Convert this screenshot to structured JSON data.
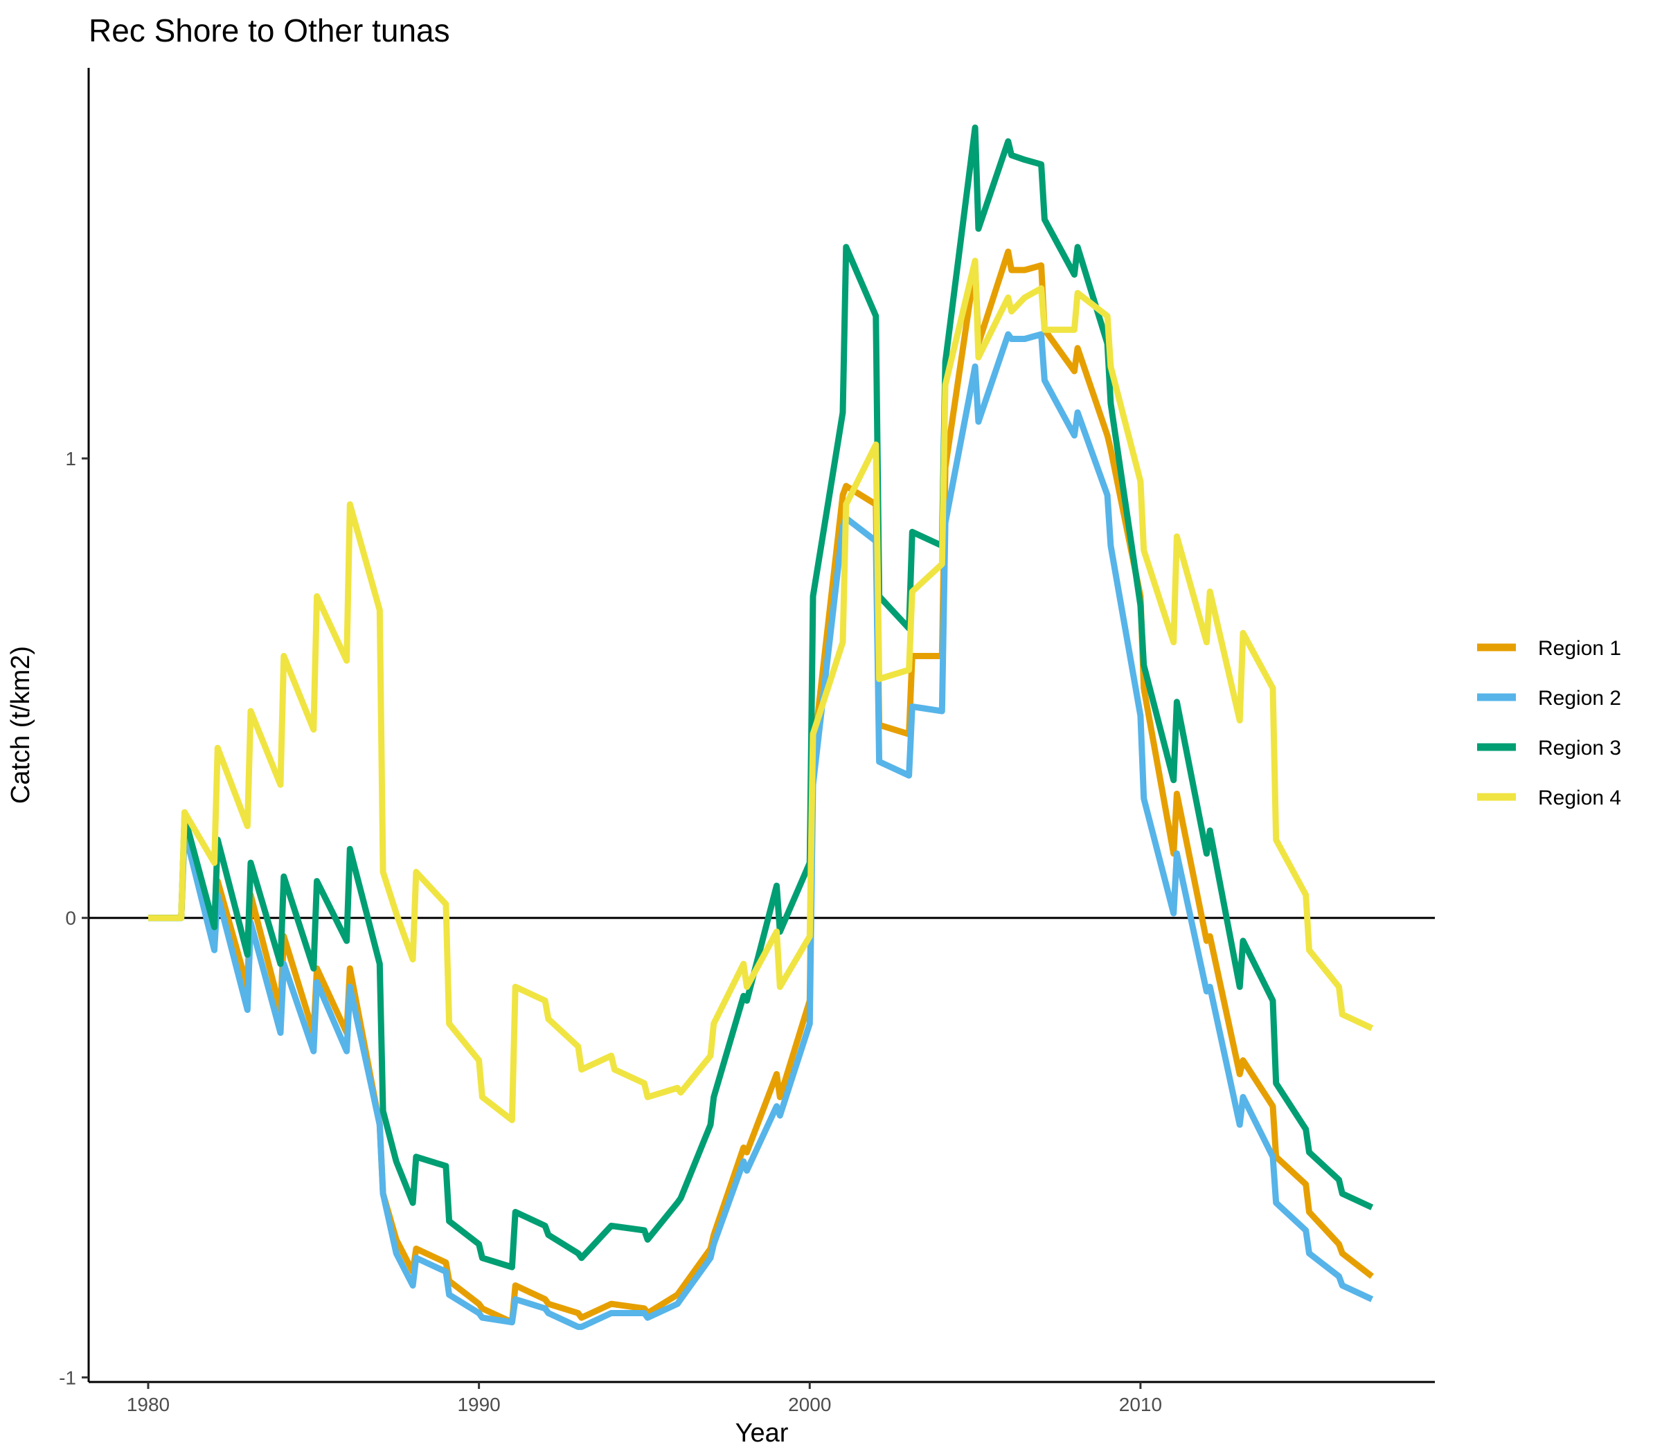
{
  "chart_data": {
    "type": "line",
    "title": "Rec Shore to Other tunas",
    "xlabel": "Year",
    "ylabel": "Catch (t/km2)",
    "xlim": [
      1978.2,
      2018.9
    ],
    "ylim": [
      -1.01,
      1.85
    ],
    "x_ticks": [
      "1980",
      "1990",
      "2000",
      "2010"
    ],
    "x_tick_values": [
      1980,
      1990,
      2000,
      2010
    ],
    "y_ticks": [
      "-1",
      "0",
      "1"
    ],
    "y_tick_values": [
      -1,
      0,
      1
    ],
    "reference_line": 0,
    "grid": false,
    "legend_position": "right",
    "series": [
      {
        "name": "Region 1",
        "color": "#E69F00",
        "points": [
          [
            1980,
            0
          ],
          [
            1980.5,
            0
          ],
          [
            1981,
            0
          ],
          [
            1981.1,
            0.2
          ],
          [
            1982,
            -0.03
          ],
          [
            1982.1,
            0.08
          ],
          [
            1983,
            -0.15
          ],
          [
            1983.1,
            0.05
          ],
          [
            1984,
            -0.2
          ],
          [
            1984.1,
            -0.04
          ],
          [
            1985,
            -0.25
          ],
          [
            1985.1,
            -0.11
          ],
          [
            1986,
            -0.25
          ],
          [
            1986.1,
            -0.11
          ],
          [
            1987,
            -0.45
          ],
          [
            1987.1,
            -0.6
          ],
          [
            1987.5,
            -0.7
          ],
          [
            1988,
            -0.77
          ],
          [
            1988.1,
            -0.72
          ],
          [
            1989,
            -0.75
          ],
          [
            1989.1,
            -0.79
          ],
          [
            1990,
            -0.84
          ],
          [
            1990.1,
            -0.85
          ],
          [
            1991,
            -0.88
          ],
          [
            1991.1,
            -0.8
          ],
          [
            1992,
            -0.83
          ],
          [
            1992.1,
            -0.84
          ],
          [
            1993,
            -0.86
          ],
          [
            1993.1,
            -0.87
          ],
          [
            1994,
            -0.84
          ],
          [
            1995,
            -0.85
          ],
          [
            1995.1,
            -0.86
          ],
          [
            1996,
            -0.82
          ],
          [
            1996.1,
            -0.81
          ],
          [
            1997,
            -0.72
          ],
          [
            1997.1,
            -0.69
          ],
          [
            1998,
            -0.5
          ],
          [
            1998.1,
            -0.51
          ],
          [
            1999,
            -0.34
          ],
          [
            1999.1,
            -0.39
          ],
          [
            2000,
            -0.18
          ],
          [
            2000.1,
            0.35
          ],
          [
            2001,
            0.92
          ],
          [
            2001.1,
            0.94
          ],
          [
            2002,
            0.9
          ],
          [
            2002.1,
            0.42
          ],
          [
            2003,
            0.4
          ],
          [
            2003.1,
            0.57
          ],
          [
            2004,
            0.57
          ],
          [
            2004.1,
            0.98
          ],
          [
            2005,
            1.42
          ],
          [
            2005.1,
            1.25
          ],
          [
            2006,
            1.45
          ],
          [
            2006.1,
            1.41
          ],
          [
            2006.5,
            1.41
          ],
          [
            2007,
            1.42
          ],
          [
            2007.1,
            1.28
          ],
          [
            2008,
            1.19
          ],
          [
            2008.1,
            1.24
          ],
          [
            2009,
            1.05
          ],
          [
            2009.1,
            1.02
          ],
          [
            2010,
            0.7
          ],
          [
            2010.1,
            0.5
          ],
          [
            2011,
            0.14
          ],
          [
            2011.1,
            0.27
          ],
          [
            2012,
            -0.05
          ],
          [
            2012.1,
            -0.04
          ],
          [
            2013,
            -0.34
          ],
          [
            2013.1,
            -0.31
          ],
          [
            2014,
            -0.41
          ],
          [
            2014.1,
            -0.52
          ],
          [
            2015,
            -0.58
          ],
          [
            2015.1,
            -0.64
          ],
          [
            2016,
            -0.71
          ],
          [
            2016.1,
            -0.73
          ],
          [
            2017,
            -0.78
          ]
        ]
      },
      {
        "name": "Region 2",
        "color": "#56B4E9",
        "points": [
          [
            1980,
            0
          ],
          [
            1980.5,
            0
          ],
          [
            1981,
            0
          ],
          [
            1981.1,
            0.19
          ],
          [
            1982,
            -0.07
          ],
          [
            1982.1,
            0.05
          ],
          [
            1983,
            -0.2
          ],
          [
            1983.1,
            -0.01
          ],
          [
            1984,
            -0.25
          ],
          [
            1984.1,
            -0.1
          ],
          [
            1985,
            -0.29
          ],
          [
            1985.1,
            -0.14
          ],
          [
            1986,
            -0.29
          ],
          [
            1986.1,
            -0.15
          ],
          [
            1987,
            -0.45
          ],
          [
            1987.1,
            -0.6
          ],
          [
            1987.5,
            -0.73
          ],
          [
            1988,
            -0.8
          ],
          [
            1988.1,
            -0.74
          ],
          [
            1989,
            -0.77
          ],
          [
            1989.1,
            -0.82
          ],
          [
            1990,
            -0.86
          ],
          [
            1990.1,
            -0.87
          ],
          [
            1991,
            -0.88
          ],
          [
            1991.1,
            -0.83
          ],
          [
            1992,
            -0.85
          ],
          [
            1992.1,
            -0.86
          ],
          [
            1993,
            -0.89
          ],
          [
            1993.1,
            -0.89
          ],
          [
            1994,
            -0.86
          ],
          [
            1995,
            -0.86
          ],
          [
            1995.1,
            -0.87
          ],
          [
            1996,
            -0.84
          ],
          [
            1996.1,
            -0.83
          ],
          [
            1997,
            -0.74
          ],
          [
            1997.1,
            -0.71
          ],
          [
            1998,
            -0.53
          ],
          [
            1998.1,
            -0.55
          ],
          [
            1999,
            -0.41
          ],
          [
            1999.1,
            -0.43
          ],
          [
            2000,
            -0.23
          ],
          [
            2000.1,
            0.29
          ],
          [
            2001,
            0.85
          ],
          [
            2001.1,
            0.87
          ],
          [
            2002,
            0.82
          ],
          [
            2002.1,
            0.34
          ],
          [
            2003,
            0.31
          ],
          [
            2003.1,
            0.46
          ],
          [
            2004,
            0.45
          ],
          [
            2004.1,
            0.86
          ],
          [
            2005,
            1.2
          ],
          [
            2005.1,
            1.08
          ],
          [
            2006,
            1.27
          ],
          [
            2006.1,
            1.26
          ],
          [
            2006.5,
            1.26
          ],
          [
            2007,
            1.27
          ],
          [
            2007.1,
            1.17
          ],
          [
            2008,
            1.05
          ],
          [
            2008.1,
            1.1
          ],
          [
            2009,
            0.92
          ],
          [
            2009.1,
            0.81
          ],
          [
            2010,
            0.44
          ],
          [
            2010.1,
            0.26
          ],
          [
            2011,
            0.01
          ],
          [
            2011.1,
            0.14
          ],
          [
            2012,
            -0.16
          ],
          [
            2012.1,
            -0.15
          ],
          [
            2013,
            -0.45
          ],
          [
            2013.1,
            -0.39
          ],
          [
            2014,
            -0.52
          ],
          [
            2014.1,
            -0.62
          ],
          [
            2015,
            -0.68
          ],
          [
            2015.1,
            -0.73
          ],
          [
            2016,
            -0.78
          ],
          [
            2016.1,
            -0.8
          ],
          [
            2017,
            -0.83
          ]
        ]
      },
      {
        "name": "Region 3",
        "color": "#009E73",
        "points": [
          [
            1980,
            0
          ],
          [
            1980.5,
            0
          ],
          [
            1981,
            0
          ],
          [
            1981.1,
            0.22
          ],
          [
            1982,
            -0.02
          ],
          [
            1982.1,
            0.17
          ],
          [
            1983,
            -0.08
          ],
          [
            1983.1,
            0.12
          ],
          [
            1984,
            -0.1
          ],
          [
            1984.1,
            0.09
          ],
          [
            1985,
            -0.11
          ],
          [
            1985.1,
            0.08
          ],
          [
            1986,
            -0.05
          ],
          [
            1986.1,
            0.15
          ],
          [
            1987,
            -0.1
          ],
          [
            1987.1,
            -0.42
          ],
          [
            1987.5,
            -0.53
          ],
          [
            1988,
            -0.62
          ],
          [
            1988.1,
            -0.52
          ],
          [
            1989,
            -0.54
          ],
          [
            1989.1,
            -0.66
          ],
          [
            1990,
            -0.71
          ],
          [
            1990.1,
            -0.74
          ],
          [
            1991,
            -0.76
          ],
          [
            1991.1,
            -0.64
          ],
          [
            1992,
            -0.67
          ],
          [
            1992.1,
            -0.69
          ],
          [
            1993,
            -0.73
          ],
          [
            1993.1,
            -0.74
          ],
          [
            1994,
            -0.67
          ],
          [
            1995,
            -0.68
          ],
          [
            1995.1,
            -0.7
          ],
          [
            1996,
            -0.62
          ],
          [
            1996.1,
            -0.61
          ],
          [
            1997,
            -0.45
          ],
          [
            1997.1,
            -0.39
          ],
          [
            1998,
            -0.17
          ],
          [
            1998.1,
            -0.18
          ],
          [
            1999,
            0.07
          ],
          [
            1999.1,
            -0.03
          ],
          [
            2000,
            0.12
          ],
          [
            2000.1,
            0.7
          ],
          [
            2001,
            1.1
          ],
          [
            2001.1,
            1.46
          ],
          [
            2002,
            1.31
          ],
          [
            2002.1,
            0.7
          ],
          [
            2003,
            0.63
          ],
          [
            2003.1,
            0.84
          ],
          [
            2004,
            0.81
          ],
          [
            2004.1,
            1.21
          ],
          [
            2005,
            1.72
          ],
          [
            2005.1,
            1.5
          ],
          [
            2006,
            1.69
          ],
          [
            2006.1,
            1.66
          ],
          [
            2006.5,
            1.65
          ],
          [
            2007,
            1.64
          ],
          [
            2007.1,
            1.52
          ],
          [
            2008,
            1.4
          ],
          [
            2008.1,
            1.46
          ],
          [
            2009,
            1.25
          ],
          [
            2009.1,
            1.12
          ],
          [
            2010,
            0.68
          ],
          [
            2010.1,
            0.55
          ],
          [
            2011,
            0.3
          ],
          [
            2011.1,
            0.47
          ],
          [
            2012,
            0.14
          ],
          [
            2012.1,
            0.19
          ],
          [
            2013,
            -0.15
          ],
          [
            2013.1,
            -0.05
          ],
          [
            2014,
            -0.18
          ],
          [
            2014.1,
            -0.36
          ],
          [
            2015,
            -0.46
          ],
          [
            2015.1,
            -0.51
          ],
          [
            2016,
            -0.57
          ],
          [
            2016.1,
            -0.6
          ],
          [
            2017,
            -0.63
          ]
        ]
      },
      {
        "name": "Region 4",
        "color": "#F0E442",
        "points": [
          [
            1980,
            0
          ],
          [
            1980.5,
            0
          ],
          [
            1981,
            0
          ],
          [
            1981.1,
            0.23
          ],
          [
            1982,
            0.12
          ],
          [
            1982.1,
            0.37
          ],
          [
            1983,
            0.2
          ],
          [
            1983.1,
            0.45
          ],
          [
            1984,
            0.29
          ],
          [
            1984.1,
            0.57
          ],
          [
            1985,
            0.41
          ],
          [
            1985.1,
            0.7
          ],
          [
            1986,
            0.56
          ],
          [
            1986.1,
            0.9
          ],
          [
            1987,
            0.67
          ],
          [
            1987.1,
            0.1
          ],
          [
            1987.5,
            0.01
          ],
          [
            1988,
            -0.09
          ],
          [
            1988.1,
            0.1
          ],
          [
            1989,
            0.03
          ],
          [
            1989.1,
            -0.23
          ],
          [
            1990,
            -0.31
          ],
          [
            1990.1,
            -0.39
          ],
          [
            1991,
            -0.44
          ],
          [
            1991.1,
            -0.15
          ],
          [
            1992,
            -0.18
          ],
          [
            1992.1,
            -0.22
          ],
          [
            1993,
            -0.28
          ],
          [
            1993.1,
            -0.33
          ],
          [
            1994,
            -0.3
          ],
          [
            1994.1,
            -0.33
          ],
          [
            1995,
            -0.36
          ],
          [
            1995.1,
            -0.39
          ],
          [
            1996,
            -0.37
          ],
          [
            1996.1,
            -0.38
          ],
          [
            1997,
            -0.3
          ],
          [
            1997.1,
            -0.23
          ],
          [
            1998,
            -0.1
          ],
          [
            1998.1,
            -0.15
          ],
          [
            1999,
            -0.03
          ],
          [
            1999.1,
            -0.15
          ],
          [
            2000,
            -0.04
          ],
          [
            2000.1,
            0.4
          ],
          [
            2001,
            0.6
          ],
          [
            2001.1,
            0.9
          ],
          [
            2002,
            1.03
          ],
          [
            2002.1,
            0.52
          ],
          [
            2003,
            0.54
          ],
          [
            2003.1,
            0.71
          ],
          [
            2004,
            0.77
          ],
          [
            2004.1,
            1.16
          ],
          [
            2005,
            1.43
          ],
          [
            2005.1,
            1.22
          ],
          [
            2006,
            1.35
          ],
          [
            2006.1,
            1.32
          ],
          [
            2006.5,
            1.35
          ],
          [
            2007,
            1.37
          ],
          [
            2007.1,
            1.28
          ],
          [
            2008,
            1.28
          ],
          [
            2008.1,
            1.36
          ],
          [
            2009,
            1.31
          ],
          [
            2009.1,
            1.2
          ],
          [
            2010,
            0.95
          ],
          [
            2010.1,
            0.8
          ],
          [
            2011,
            0.6
          ],
          [
            2011.1,
            0.83
          ],
          [
            2012,
            0.6
          ],
          [
            2012.1,
            0.71
          ],
          [
            2013,
            0.43
          ],
          [
            2013.1,
            0.62
          ],
          [
            2014,
            0.5
          ],
          [
            2014.1,
            0.17
          ],
          [
            2015,
            0.05
          ],
          [
            2015.1,
            -0.07
          ],
          [
            2016,
            -0.15
          ],
          [
            2016.1,
            -0.21
          ],
          [
            2017,
            -0.24
          ]
        ]
      }
    ]
  }
}
